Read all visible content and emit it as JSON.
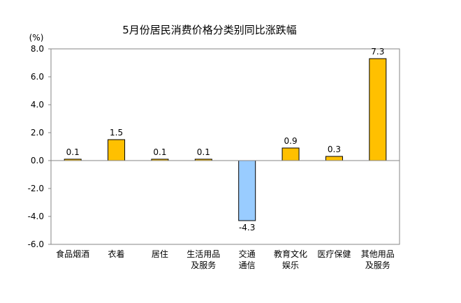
{
  "chart_data": {
    "type": "bar",
    "title": "5月份居民消费价格分类别同比涨跌幅",
    "unit_label": "(%)",
    "categories": [
      [
        "食品烟酒"
      ],
      [
        "衣着"
      ],
      [
        "居住"
      ],
      [
        "生活用品",
        "及服务"
      ],
      [
        "交通",
        "通信"
      ],
      [
        "教育文化",
        "娱乐"
      ],
      [
        "医疗保健"
      ],
      [
        "其他用品",
        "及服务"
      ]
    ],
    "values": [
      0.1,
      1.5,
      0.1,
      0.1,
      -4.3,
      0.9,
      0.3,
      7.3
    ],
    "value_labels": [
      "0.1",
      "1.5",
      "0.1",
      "0.1",
      "-4.3",
      "0.9",
      "0.3",
      "7.3"
    ],
    "ylim": [
      -6,
      8
    ],
    "yticks": [
      8,
      6,
      4,
      2,
      0,
      -2,
      -4,
      -6
    ],
    "ytick_labels": [
      "8.0",
      "6.0",
      "4.0",
      "2.0",
      "0.0",
      "-2.0",
      "-4.0",
      "-6.0"
    ],
    "colors": {
      "positive_fill": "#FFC000",
      "positive_stroke": "#000000",
      "negative_fill": "#99CCFF",
      "negative_stroke": "#000000",
      "axis": "#868686"
    },
    "grid": false,
    "legend": "none"
  }
}
